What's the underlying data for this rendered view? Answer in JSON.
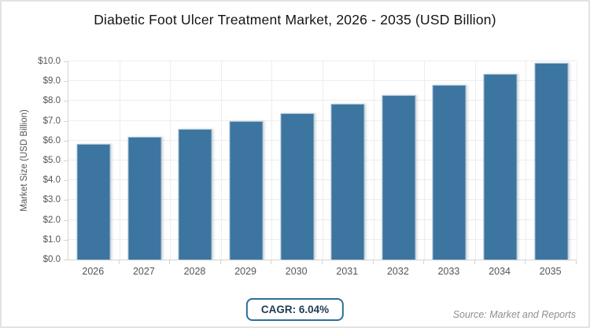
{
  "title": "Diabetic Foot Ulcer Treatment Market, 2026 - 2035 (USD Billion)",
  "chart_data": {
    "type": "bar",
    "categories": [
      "2026",
      "2027",
      "2028",
      "2029",
      "2030",
      "2031",
      "2032",
      "2033",
      "2034",
      "2035"
    ],
    "values": [
      5.85,
      6.2,
      6.58,
      6.97,
      7.39,
      7.84,
      8.31,
      8.81,
      9.35,
      9.91
    ],
    "title": "Diabetic Foot Ulcer Treatment Market, 2026 - 2035 (USD Billion)",
    "xlabel": "",
    "ylabel": "Market Size (USD Billion)",
    "ylim": [
      0,
      10
    ],
    "ytick_step": 1,
    "ytick_labels": [
      "$0.0",
      "$1.0",
      "$2.0",
      "$3.0",
      "$4.0",
      "$5.0",
      "$6.0",
      "$7.0",
      "$8.0",
      "$9.0",
      "$10.0"
    ],
    "grid": true,
    "legend": "none",
    "bar_color": "#3c75a0"
  },
  "footer": {
    "cagr_label": "CAGR: 6.04%",
    "source": "Source: Market and Reports"
  },
  "colors": {
    "bar": "#3c75a0",
    "badge_border": "#2e6e95",
    "badge_text": "#1d3c52",
    "grid": "#ededed",
    "axis": "#d4d4d4",
    "tick_label": "#555555",
    "title": "#141414",
    "source": "#8f8f8f",
    "background": "#ffffff",
    "frame_border": "#e3e3e3"
  }
}
